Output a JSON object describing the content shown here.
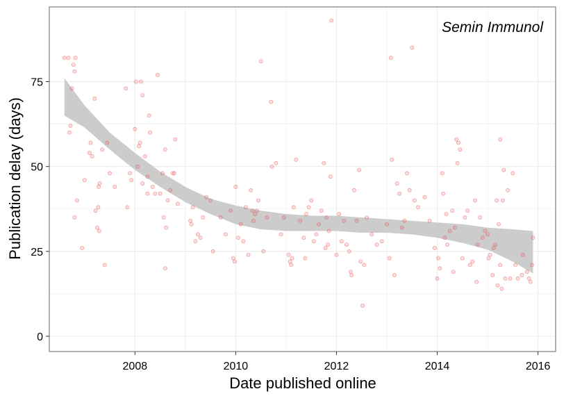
{
  "chart_data": {
    "type": "scatter",
    "title": "",
    "annotation": "Semin Immunol",
    "xlabel": "Date published online",
    "ylabel": "Publication delay (days)",
    "xlim": [
      2006.3,
      2016.35
    ],
    "ylim": [
      -4.5,
      97
    ],
    "x_ticks": [
      2008,
      2010,
      2012,
      2014,
      2016
    ],
    "y_ticks": [
      0,
      25,
      50,
      75
    ],
    "grid": true,
    "point_color": "#E8474A",
    "band_color": "#CCCCCC",
    "panel_border_color": "#7F7F7F",
    "grid_color": "#EBEBEB",
    "smooth_band": [
      {
        "x": 2006.6,
        "lo": 65,
        "hi": 76
      },
      {
        "x": 2007.0,
        "lo": 61.5,
        "hi": 68
      },
      {
        "x": 2007.5,
        "lo": 55,
        "hi": 60
      },
      {
        "x": 2008.0,
        "lo": 49,
        "hi": 54
      },
      {
        "x": 2008.5,
        "lo": 44,
        "hi": 48.5
      },
      {
        "x": 2009.0,
        "lo": 39.5,
        "hi": 44
      },
      {
        "x": 2009.5,
        "lo": 36,
        "hi": 40.5
      },
      {
        "x": 2010.0,
        "lo": 33,
        "hi": 38.5
      },
      {
        "x": 2010.5,
        "lo": 31.5,
        "hi": 37
      },
      {
        "x": 2011.0,
        "lo": 31,
        "hi": 36
      },
      {
        "x": 2011.5,
        "lo": 31,
        "hi": 35.5
      },
      {
        "x": 2012.0,
        "lo": 31,
        "hi": 35.5
      },
      {
        "x": 2012.5,
        "lo": 30.5,
        "hi": 35
      },
      {
        "x": 2013.0,
        "lo": 30.5,
        "hi": 34.5
      },
      {
        "x": 2013.5,
        "lo": 30,
        "hi": 34
      },
      {
        "x": 2014.0,
        "lo": 29,
        "hi": 33.5
      },
      {
        "x": 2014.5,
        "lo": 27.5,
        "hi": 33
      },
      {
        "x": 2015.0,
        "lo": 25.5,
        "hi": 32
      },
      {
        "x": 2015.5,
        "lo": 22,
        "hi": 31.5
      },
      {
        "x": 2015.9,
        "lo": 18.5,
        "hi": 31
      }
    ],
    "points": [
      [
        2006.6,
        82
      ],
      [
        2006.68,
        82
      ],
      [
        2006.72,
        62
      ],
      [
        2006.7,
        60
      ],
      [
        2006.75,
        73
      ],
      [
        2006.8,
        78
      ],
      [
        2006.78,
        80
      ],
      [
        2006.82,
        82
      ],
      [
        2006.85,
        40
      ],
      [
        2006.8,
        35
      ],
      [
        2006.95,
        26
      ],
      [
        2007.0,
        46
      ],
      [
        2007.1,
        54
      ],
      [
        2007.12,
        57
      ],
      [
        2007.15,
        53
      ],
      [
        2007.2,
        70
      ],
      [
        2007.22,
        37
      ],
      [
        2007.25,
        32
      ],
      [
        2007.28,
        44
      ],
      [
        2007.3,
        45
      ],
      [
        2007.35,
        55
      ],
      [
        2007.4,
        21
      ],
      [
        2007.45,
        57
      ],
      [
        2007.5,
        48
      ],
      [
        2007.27,
        38
      ],
      [
        2007.29,
        31
      ],
      [
        2007.6,
        44
      ],
      [
        2007.82,
        73
      ],
      [
        2007.85,
        38
      ],
      [
        2007.9,
        48
      ],
      [
        2007.93,
        46
      ],
      [
        2008.0,
        61
      ],
      [
        2008.02,
        75
      ],
      [
        2008.05,
        50
      ],
      [
        2008.08,
        56
      ],
      [
        2008.1,
        57
      ],
      [
        2008.12,
        75
      ],
      [
        2008.15,
        71
      ],
      [
        2008.2,
        53
      ],
      [
        2008.25,
        47
      ],
      [
        2008.28,
        65
      ],
      [
        2008.3,
        60
      ],
      [
        2008.35,
        44
      ],
      [
        2008.4,
        42
      ],
      [
        2008.45,
        77
      ],
      [
        2008.5,
        42
      ],
      [
        2008.55,
        48
      ],
      [
        2008.6,
        20
      ],
      [
        2008.65,
        40
      ],
      [
        2008.7,
        43
      ],
      [
        2008.75,
        48
      ],
      [
        2008.8,
        58
      ],
      [
        2008.85,
        39
      ],
      [
        2008.6,
        55
      ],
      [
        2008.57,
        35
      ],
      [
        2008.62,
        32
      ],
      [
        2008.78,
        48
      ],
      [
        2008.25,
        42
      ],
      [
        2008.15,
        45
      ],
      [
        2009.1,
        34
      ],
      [
        2009.12,
        33
      ],
      [
        2009.15,
        38
      ],
      [
        2009.2,
        28
      ],
      [
        2009.25,
        30
      ],
      [
        2009.3,
        29
      ],
      [
        2009.35,
        35
      ],
      [
        2009.42,
        41
      ],
      [
        2009.5,
        40
      ],
      [
        2009.55,
        25
      ],
      [
        2009.7,
        35
      ],
      [
        2009.8,
        30
      ],
      [
        2009.9,
        37
      ],
      [
        2009.95,
        23
      ],
      [
        2009.98,
        22
      ],
      [
        2010.0,
        44
      ],
      [
        2010.05,
        29
      ],
      [
        2010.1,
        33
      ],
      [
        2010.15,
        28
      ],
      [
        2010.2,
        38
      ],
      [
        2010.25,
        24
      ],
      [
        2010.3,
        43
      ],
      [
        2010.33,
        37
      ],
      [
        2010.35,
        34
      ],
      [
        2010.38,
        36
      ],
      [
        2010.42,
        37
      ],
      [
        2010.45,
        40
      ],
      [
        2010.5,
        81
      ],
      [
        2010.55,
        25
      ],
      [
        2010.62,
        35
      ],
      [
        2010.7,
        69
      ],
      [
        2010.72,
        50
      ],
      [
        2010.8,
        51
      ],
      [
        2010.9,
        30
      ],
      [
        2010.96,
        35
      ],
      [
        2011.05,
        24
      ],
      [
        2011.08,
        22
      ],
      [
        2011.1,
        21
      ],
      [
        2011.12,
        23
      ],
      [
        2011.15,
        38
      ],
      [
        2011.2,
        52
      ],
      [
        2011.28,
        34
      ],
      [
        2011.35,
        29
      ],
      [
        2011.38,
        23
      ],
      [
        2011.4,
        36
      ],
      [
        2011.45,
        38
      ],
      [
        2011.5,
        40
      ],
      [
        2011.55,
        28
      ],
      [
        2011.6,
        30
      ],
      [
        2011.65,
        33
      ],
      [
        2011.7,
        37
      ],
      [
        2011.75,
        51
      ],
      [
        2011.78,
        26
      ],
      [
        2011.8,
        35
      ],
      [
        2011.83,
        27
      ],
      [
        2011.85,
        31
      ],
      [
        2011.88,
        47
      ],
      [
        2011.9,
        93
      ],
      [
        2012.0,
        24
      ],
      [
        2012.05,
        36
      ],
      [
        2012.1,
        28
      ],
      [
        2012.15,
        34
      ],
      [
        2012.2,
        27
      ],
      [
        2012.25,
        25
      ],
      [
        2012.28,
        19
      ],
      [
        2012.3,
        18
      ],
      [
        2012.35,
        43
      ],
      [
        2012.4,
        34
      ],
      [
        2012.45,
        49
      ],
      [
        2012.48,
        22
      ],
      [
        2012.52,
        9
      ],
      [
        2012.55,
        21
      ],
      [
        2012.6,
        35
      ],
      [
        2012.7,
        30
      ],
      [
        2012.8,
        27
      ],
      [
        2012.9,
        28
      ],
      [
        2013.0,
        33
      ],
      [
        2013.05,
        23
      ],
      [
        2013.08,
        82
      ],
      [
        2013.1,
        52
      ],
      [
        2013.15,
        18
      ],
      [
        2013.2,
        45
      ],
      [
        2013.25,
        42
      ],
      [
        2013.3,
        32
      ],
      [
        2013.35,
        34
      ],
      [
        2013.4,
        48
      ],
      [
        2013.45,
        43
      ],
      [
        2013.5,
        85
      ],
      [
        2013.55,
        40
      ],
      [
        2013.62,
        38
      ],
      [
        2013.75,
        41
      ],
      [
        2013.85,
        34
      ],
      [
        2013.95,
        26
      ],
      [
        2014.0,
        17
      ],
      [
        2014.02,
        23
      ],
      [
        2014.05,
        20
      ],
      [
        2014.1,
        48
      ],
      [
        2014.12,
        42
      ],
      [
        2014.15,
        29
      ],
      [
        2014.18,
        36
      ],
      [
        2014.2,
        27
      ],
      [
        2014.25,
        31
      ],
      [
        2014.3,
        37
      ],
      [
        2014.32,
        19
      ],
      [
        2014.35,
        32
      ],
      [
        2014.38,
        58
      ],
      [
        2014.4,
        51
      ],
      [
        2014.42,
        57
      ],
      [
        2014.45,
        55
      ],
      [
        2014.5,
        23
      ],
      [
        2014.55,
        35
      ],
      [
        2014.6,
        37
      ],
      [
        2014.65,
        21
      ],
      [
        2014.7,
        22
      ],
      [
        2014.75,
        40
      ],
      [
        2014.78,
        16
      ],
      [
        2014.8,
        27
      ],
      [
        2014.85,
        35
      ],
      [
        2014.9,
        29
      ],
      [
        2014.95,
        31
      ],
      [
        2015.0,
        30
      ],
      [
        2015.02,
        23
      ],
      [
        2015.05,
        24
      ],
      [
        2015.1,
        18
      ],
      [
        2015.15,
        27
      ],
      [
        2015.18,
        40
      ],
      [
        2015.2,
        15
      ],
      [
        2015.22,
        33
      ],
      [
        2015.25,
        58
      ],
      [
        2015.28,
        14
      ],
      [
        2015.3,
        40
      ],
      [
        2015.32,
        49
      ],
      [
        2015.35,
        17
      ],
      [
        2015.4,
        43
      ],
      [
        2015.45,
        17
      ],
      [
        2015.5,
        48
      ],
      [
        2015.55,
        21
      ],
      [
        2015.6,
        17
      ],
      [
        2015.68,
        18
      ],
      [
        2015.7,
        24
      ],
      [
        2015.78,
        19
      ],
      [
        2015.82,
        17
      ],
      [
        2015.85,
        16
      ],
      [
        2015.88,
        21
      ],
      [
        2015.9,
        29
      ],
      [
        2015.25,
        21
      ],
      [
        2015.12,
        26
      ]
    ]
  }
}
